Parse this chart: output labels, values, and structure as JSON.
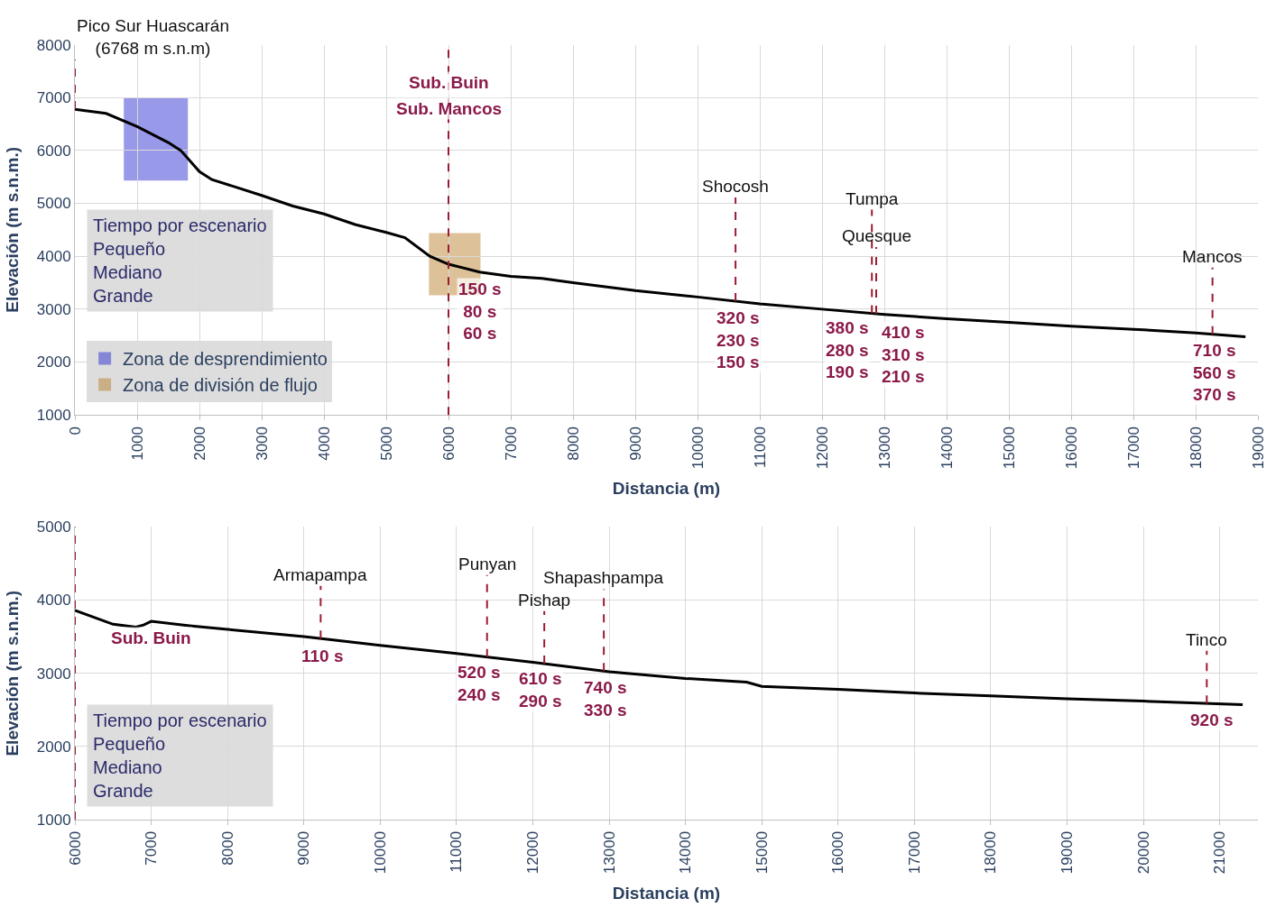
{
  "chart_data": [
    {
      "type": "line",
      "xlabel": "Distancia (m)",
      "ylabel": "Elevación (m s.n.m.)",
      "xlim": [
        0,
        19000
      ],
      "ylim": [
        1000,
        8000
      ],
      "xticks": [
        0,
        1000,
        2000,
        3000,
        4000,
        5000,
        6000,
        7000,
        8000,
        9000,
        10000,
        11000,
        12000,
        13000,
        14000,
        15000,
        16000,
        17000,
        18000,
        19000
      ],
      "yticks": [
        1000,
        2000,
        3000,
        4000,
        5000,
        6000,
        7000,
        8000
      ],
      "grid": true,
      "legend": "bottom left",
      "series": [
        {
          "color": "#000000",
          "x": [
            0,
            500,
            1000,
            1500,
            1700,
            2000,
            2200,
            2600,
            3000,
            3500,
            4000,
            4500,
            5000,
            5300,
            5700,
            6000,
            6500,
            7000,
            7500,
            8000,
            9000,
            10000,
            11000,
            12000,
            13000,
            14000,
            15000,
            16000,
            17000,
            18000,
            18800
          ],
          "values": [
            6780,
            6700,
            6450,
            6150,
            6000,
            5600,
            5450,
            5300,
            5150,
            4950,
            4800,
            4600,
            4450,
            4350,
            4000,
            3850,
            3700,
            3620,
            3580,
            3500,
            3350,
            3230,
            3100,
            3000,
            2900,
            2820,
            2750,
            2680,
            2620,
            2550,
            2480
          ]
        }
      ],
      "bands": [
        {
          "axis": "x",
          "from": 800,
          "to": 1800,
          "label": "Zona de desprendimiento",
          "color": "#1f1fd0"
        },
        {
          "axis": "x",
          "from": 5700,
          "to": 6500,
          "label": "Zona de división de flujo",
          "color": "#b5781f"
        }
      ],
      "ref_lines": [
        {
          "axis": "x",
          "value": 0,
          "label": "Pico Sur Huascarán\n(6768 m s.n.m)",
          "color": "#9b1b30",
          "line_style": "dashed"
        },
        {
          "axis": "x",
          "value": 6000,
          "color": "#9b1b30",
          "line_style": "dashed"
        },
        {
          "axis": "x",
          "value": 10610,
          "label": "Shocosh",
          "color": "#9b1b30",
          "line_style": "dashed"
        },
        {
          "axis": "x",
          "value": 12870,
          "label": "Quesque",
          "color": "#9b1b30",
          "line_style": "dashed"
        },
        {
          "axis": "x",
          "value": 12800,
          "label": "Tumpa",
          "color": "#9b1b30",
          "line_style": "dashed"
        },
        {
          "axis": "x",
          "value": 18270,
          "label": "Mancos",
          "color": "#9b1b30",
          "line_style": "dashed"
        }
      ],
      "annotations": [
        {
          "text": "Sub. Buin",
          "x": 6000,
          "y": 7600
        },
        {
          "text": "Sub. Mancos",
          "x": 6000,
          "y": 7100
        },
        {
          "text": "150 s\n80 s\n60 s",
          "x": 6500,
          "y": 3700
        },
        {
          "text": "320 s\n230 s\n150 s",
          "x": 10650,
          "y": 3150
        },
        {
          "text": "380 s\n280 s\n190 s",
          "x": 12400,
          "y": 2960
        },
        {
          "text": "410 s\n310 s\n210 s",
          "x": 13300,
          "y": 2880
        },
        {
          "text": "710 s\n560 s\n370 s",
          "x": 18300,
          "y": 2540
        },
        "Tiempo por escenario",
        "Pequeño",
        "Mediano",
        "Grande"
      ]
    },
    {
      "type": "line",
      "xlabel": "Distancia (m)",
      "ylabel": "Elevación (m s.n.m.)",
      "xlim": [
        6000,
        21500
      ],
      "ylim": [
        1000,
        5000
      ],
      "xticks": [
        6000,
        7000,
        8000,
        9000,
        10000,
        11000,
        12000,
        13000,
        14000,
        15000,
        16000,
        17000,
        18000,
        19000,
        20000,
        21000
      ],
      "yticks": [
        1000,
        2000,
        3000,
        4000,
        5000
      ],
      "grid": true,
      "series": [
        {
          "color": "#000000",
          "x": [
            6000,
            6500,
            6800,
            6900,
            7000,
            7500,
            8000,
            9000,
            10000,
            11000,
            12000,
            13000,
            14000,
            14800,
            15000,
            16000,
            17000,
            18000,
            19000,
            20000,
            21300
          ],
          "values": [
            3860,
            3670,
            3630,
            3660,
            3710,
            3650,
            3600,
            3500,
            3380,
            3270,
            3150,
            3020,
            2930,
            2880,
            2820,
            2780,
            2730,
            2690,
            2650,
            2620,
            2570
          ]
        }
      ],
      "ref_lines": [
        {
          "axis": "x",
          "value": 6000,
          "color": "#9b1b30",
          "line_style": "dashed"
        },
        {
          "axis": "x",
          "value": 9220,
          "label": "Armapampa",
          "color": "#9b1b30",
          "line_style": "dashed"
        },
        {
          "axis": "x",
          "value": 11400,
          "label": "Punyan",
          "color": "#9b1b30",
          "line_style": "dashed"
        },
        {
          "axis": "x",
          "value": 12150,
          "label": "Pishap",
          "color": "#9b1b30",
          "line_style": "dashed"
        },
        {
          "axis": "x",
          "value": 12930,
          "label": "Shapashpampa",
          "color": "#9b1b30",
          "line_style": "dashed"
        },
        {
          "axis": "x",
          "value": 20830,
          "label": "Tinco",
          "color": "#9b1b30",
          "line_style": "dashed"
        }
      ],
      "annotations": [
        {
          "text": "Sub. Buin",
          "x": 7000,
          "y": 3710
        },
        {
          "text": "110 s",
          "x": 9250,
          "y": 3470
        },
        {
          "text": "520 s\n240 s",
          "x": 11300,
          "y": 3240
        },
        {
          "text": "610 s\n290 s",
          "x": 12100,
          "y": 3160
        },
        {
          "text": "740 s\n330 s",
          "x": 12950,
          "y": 3030
        },
        {
          "text": "920 s",
          "x": 20900,
          "y": 2590
        },
        "Tiempo por escenario",
        "Pequeño",
        "Mediano",
        "Grande"
      ]
    }
  ]
}
